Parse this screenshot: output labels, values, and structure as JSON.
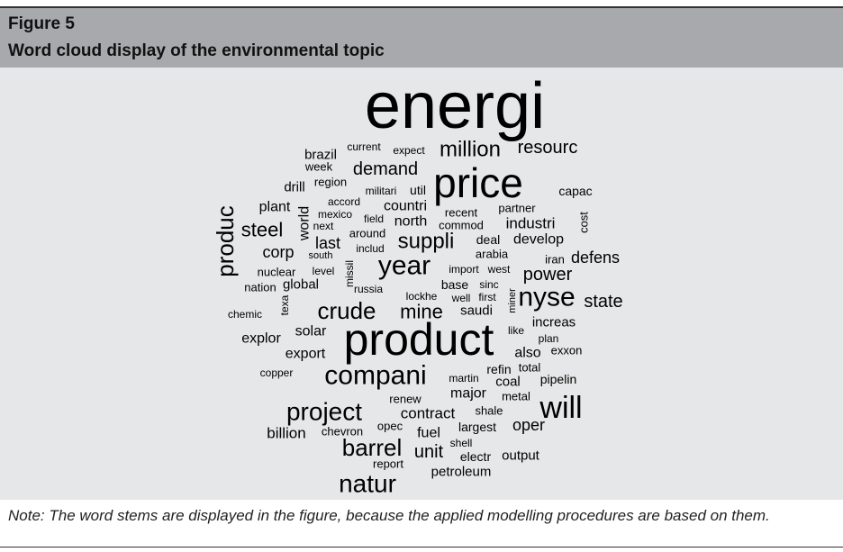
{
  "figure": {
    "label": "Figure 5",
    "title": "Word cloud display of the environmental topic",
    "words": [
      "energi",
      "million",
      "resourc",
      "brazil",
      "current",
      "expect",
      "week",
      "demand",
      "price",
      "region",
      "drill",
      "militari",
      "util",
      "capac",
      "accord",
      "plant",
      "countri",
      "recent",
      "partner",
      "produc",
      "mexico",
      "field",
      "north",
      "commod",
      "industri",
      "cost",
      "world",
      "next",
      "steel",
      "suppli",
      "deal",
      "develop",
      "around",
      "last",
      "includ",
      "corp",
      "south",
      "arabia",
      "iran",
      "defens",
      "year",
      "nuclear",
      "level",
      "missil",
      "import",
      "west",
      "power",
      "nation",
      "global",
      "russia",
      "base",
      "sinc",
      "texa",
      "lockhe",
      "well",
      "first",
      "miner",
      "nyse",
      "state",
      "crude",
      "mine",
      "saudi",
      "chemic",
      "increas",
      "solar",
      "product",
      "like",
      "plan",
      "explor",
      "also",
      "exxon",
      "export",
      "total",
      "refin",
      "copper",
      "compani",
      "martin",
      "coal",
      "pipelin",
      "renew",
      "major",
      "metal",
      "project",
      "will",
      "contract",
      "shale",
      "billion",
      "chevron",
      "opec",
      "largest",
      "oper",
      "fuel",
      "shell",
      "barrel",
      "unit",
      "electr",
      "output",
      "report",
      "petroleum",
      "natur"
    ],
    "note": "Note: The word stems are displayed in the figure, because the applied modelling procedures are based on them."
  }
}
